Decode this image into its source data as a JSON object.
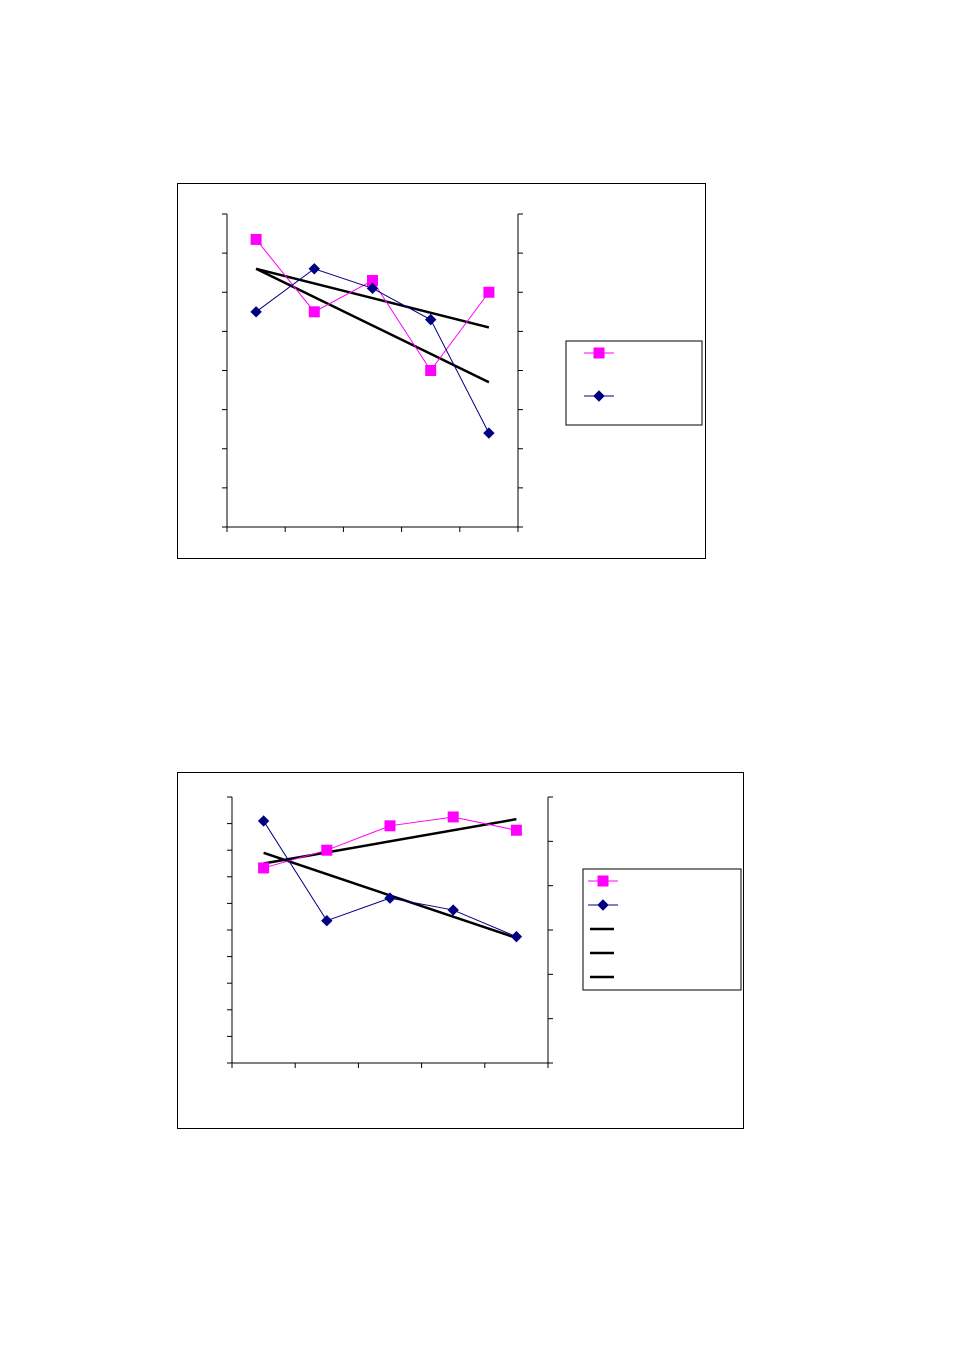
{
  "chart_data": [
    {
      "type": "line",
      "title": "",
      "xlabel": "",
      "ylabel": "",
      "y2label": "",
      "categories": [
        "",
        "",
        "",
        "",
        ""
      ],
      "ylim": [
        0,
        8
      ],
      "y2lim": [
        0,
        8
      ],
      "grid": false,
      "legend_position": "right",
      "series": [
        {
          "color": "#FF00FF",
          "marker": "square",
          "axis": "left",
          "values": [
            7.35,
            5.5,
            6.3,
            4.0,
            6.0
          ]
        },
        {
          "color": "#000080",
          "marker": "diamond",
          "axis": "left",
          "values": [
            5.5,
            6.6,
            6.1,
            5.3,
            2.4
          ]
        }
      ],
      "trendlines": [
        {
          "color": "#000000",
          "values_at_ends": [
            6.6,
            5.1
          ]
        },
        {
          "color": "#000000",
          "values_at_ends": [
            6.6,
            3.7
          ]
        }
      ]
    },
    {
      "type": "line",
      "title": "",
      "xlabel": "",
      "ylabel": "",
      "y2label": "",
      "categories": [
        "",
        "",
        "",
        "",
        ""
      ],
      "ylim": [
        0,
        10
      ],
      "y2lim": [
        0,
        6
      ],
      "grid": false,
      "legend_position": "right",
      "series": [
        {
          "color": "#FF00FF",
          "marker": "square",
          "axis": "right",
          "values": [
            4.4,
            4.8,
            5.35,
            5.55,
            5.25
          ]
        },
        {
          "color": "#000080",
          "marker": "diamond",
          "axis": "left",
          "values": [
            9.1,
            5.35,
            6.2,
            5.75,
            4.75
          ]
        }
      ],
      "trendlines": [
        {
          "color": "#000000",
          "values_at_ends": [
            4.5,
            5.5
          ]
        },
        {
          "color": "#000000",
          "values_at_ends": [
            7.9,
            4.7
          ]
        }
      ],
      "legend_extra_lines": 3
    }
  ]
}
